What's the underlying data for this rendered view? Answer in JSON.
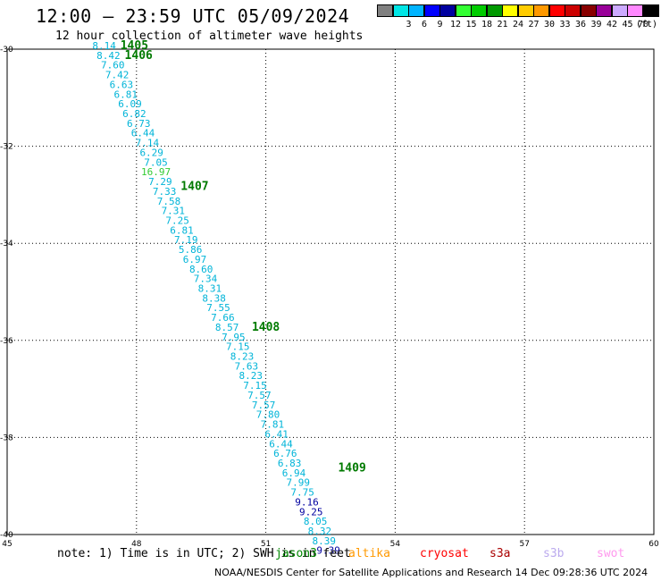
{
  "header": {
    "title": "12:00 – 23:59 UTC 05/09/2024",
    "subtitle": "12 hour collection of altimeter wave heights"
  },
  "color_scale": {
    "unit": "(ft)",
    "entries": [
      {
        "label": "",
        "color": "#808080"
      },
      {
        "label": "3",
        "color": "#00e5e5"
      },
      {
        "label": "6",
        "color": "#00b4ff"
      },
      {
        "label": "9",
        "color": "#0000ff"
      },
      {
        "label": "12",
        "color": "#0000a0"
      },
      {
        "label": "15",
        "color": "#33ff33"
      },
      {
        "label": "18",
        "color": "#00cc00"
      },
      {
        "label": "21",
        "color": "#009900"
      },
      {
        "label": "24",
        "color": "#ffff00"
      },
      {
        "label": "27",
        "color": "#ffcc00"
      },
      {
        "label": "30",
        "color": "#ff9900"
      },
      {
        "label": "33",
        "color": "#ff0000"
      },
      {
        "label": "36",
        "color": "#cc0000"
      },
      {
        "label": "39",
        "color": "#880000"
      },
      {
        "label": "42",
        "color": "#990099"
      },
      {
        "label": "45",
        "color": "#ccaaff"
      },
      {
        "label": "70",
        "color": "#ff88ff"
      },
      {
        "label": "",
        "color": "#000000"
      }
    ]
  },
  "map": {
    "lon_range": [
      45,
      60
    ],
    "lat_range": [
      -40,
      -30
    ],
    "lon_ticks": [
      45,
      48,
      51,
      54,
      57,
      60
    ],
    "lat_ticks": [
      -30,
      -32,
      -34,
      -36,
      -38,
      -40
    ],
    "grid": "dotted",
    "observations": [
      {
        "lon": 47.25,
        "lat": -30.0,
        "value": "8.14",
        "color": "#00b4d8"
      },
      {
        "lon": 47.35,
        "lat": -30.2,
        "value": "8.42",
        "color": "#00b4d8"
      },
      {
        "lon": 47.45,
        "lat": -30.4,
        "value": "7.60",
        "color": "#00b4d8"
      },
      {
        "lon": 47.55,
        "lat": -30.6,
        "value": "7.42",
        "color": "#00b4d8"
      },
      {
        "lon": 47.65,
        "lat": -30.8,
        "value": "6.63",
        "color": "#00b4d8"
      },
      {
        "lon": 47.75,
        "lat": -31.0,
        "value": "6.81",
        "color": "#00b4d8"
      },
      {
        "lon": 47.85,
        "lat": -31.2,
        "value": "6.09",
        "color": "#00b4d8"
      },
      {
        "lon": 47.95,
        "lat": -31.4,
        "value": "6.82",
        "color": "#00b4d8"
      },
      {
        "lon": 48.05,
        "lat": -31.6,
        "value": "6.73",
        "color": "#00b4d8"
      },
      {
        "lon": 48.15,
        "lat": -31.8,
        "value": "6.44",
        "color": "#00b4d8"
      },
      {
        "lon": 48.25,
        "lat": -32.0,
        "value": "7.14",
        "color": "#00b4d8"
      },
      {
        "lon": 48.35,
        "lat": -32.2,
        "value": "6.29",
        "color": "#00b4d8"
      },
      {
        "lon": 48.45,
        "lat": -32.4,
        "value": "7.05",
        "color": "#00b4d8"
      },
      {
        "lon": 48.45,
        "lat": -32.6,
        "value": "16.97",
        "color": "#33cc33"
      },
      {
        "lon": 48.55,
        "lat": -32.8,
        "value": "7.29",
        "color": "#00b4d8"
      },
      {
        "lon": 48.65,
        "lat": -33.0,
        "value": "7.33",
        "color": "#00b4d8"
      },
      {
        "lon": 48.75,
        "lat": -33.2,
        "value": "7.58",
        "color": "#00b4d8"
      },
      {
        "lon": 48.85,
        "lat": -33.4,
        "value": "7.31",
        "color": "#00b4d8"
      },
      {
        "lon": 48.95,
        "lat": -33.6,
        "value": "7.25",
        "color": "#00b4d8"
      },
      {
        "lon": 49.05,
        "lat": -33.8,
        "value": "6.81",
        "color": "#00b4d8"
      },
      {
        "lon": 49.15,
        "lat": -34.0,
        "value": "7.19",
        "color": "#00b4d8"
      },
      {
        "lon": 49.25,
        "lat": -34.2,
        "value": "5.86",
        "color": "#00b4d8"
      },
      {
        "lon": 49.35,
        "lat": -34.4,
        "value": "6.97",
        "color": "#00b4d8"
      },
      {
        "lon": 49.5,
        "lat": -34.6,
        "value": "8.60",
        "color": "#00b4d8"
      },
      {
        "lon": 49.6,
        "lat": -34.8,
        "value": "7.34",
        "color": "#00b4d8"
      },
      {
        "lon": 49.7,
        "lat": -35.0,
        "value": "8.31",
        "color": "#00b4d8"
      },
      {
        "lon": 49.8,
        "lat": -35.2,
        "value": "8.38",
        "color": "#00b4d8"
      },
      {
        "lon": 49.9,
        "lat": -35.4,
        "value": "7.55",
        "color": "#00b4d8"
      },
      {
        "lon": 50.0,
        "lat": -35.6,
        "value": "7.66",
        "color": "#00b4d8"
      },
      {
        "lon": 50.1,
        "lat": -35.8,
        "value": "8.57",
        "color": "#00b4d8"
      },
      {
        "lon": 50.25,
        "lat": -36.0,
        "value": "7.95",
        "color": "#00b4d8"
      },
      {
        "lon": 50.35,
        "lat": -36.2,
        "value": "7.15",
        "color": "#00b4d8"
      },
      {
        "lon": 50.45,
        "lat": -36.4,
        "value": "8.23",
        "color": "#00b4d8"
      },
      {
        "lon": 50.55,
        "lat": -36.6,
        "value": "7.63",
        "color": "#00b4d8"
      },
      {
        "lon": 50.65,
        "lat": -36.8,
        "value": "8.23",
        "color": "#00b4d8"
      },
      {
        "lon": 50.75,
        "lat": -37.0,
        "value": "7.15",
        "color": "#00b4d8"
      },
      {
        "lon": 50.85,
        "lat": -37.2,
        "value": "7.57",
        "color": "#00b4d8"
      },
      {
        "lon": 50.95,
        "lat": -37.4,
        "value": "7.57",
        "color": "#00b4d8"
      },
      {
        "lon": 51.05,
        "lat": -37.6,
        "value": "7.80",
        "color": "#00b4d8"
      },
      {
        "lon": 51.15,
        "lat": -37.8,
        "value": "7.81",
        "color": "#00b4d8"
      },
      {
        "lon": 51.25,
        "lat": -38.0,
        "value": "6.41",
        "color": "#00b4d8"
      },
      {
        "lon": 51.35,
        "lat": -38.2,
        "value": "6.44",
        "color": "#00b4d8"
      },
      {
        "lon": 51.45,
        "lat": -38.4,
        "value": "6.76",
        "color": "#00b4d8"
      },
      {
        "lon": 51.55,
        "lat": -38.6,
        "value": "6.83",
        "color": "#00b4d8"
      },
      {
        "lon": 51.65,
        "lat": -38.8,
        "value": "6.94",
        "color": "#00b4d8"
      },
      {
        "lon": 51.75,
        "lat": -39.0,
        "value": "7.99",
        "color": "#00b4d8"
      },
      {
        "lon": 51.85,
        "lat": -39.2,
        "value": "7.75",
        "color": "#00b4d8"
      },
      {
        "lon": 51.95,
        "lat": -39.4,
        "value": "9.16",
        "color": "#0000a0"
      },
      {
        "lon": 52.05,
        "lat": -39.6,
        "value": "9.25",
        "color": "#0000a0"
      },
      {
        "lon": 52.15,
        "lat": -39.8,
        "value": "8.05",
        "color": "#00b4d8"
      },
      {
        "lon": 52.25,
        "lat": -40.0,
        "value": "8.32",
        "color": "#00b4d8"
      },
      {
        "lon": 52.35,
        "lat": -40.2,
        "value": "8.39",
        "color": "#00b4d8"
      },
      {
        "lon": 52.45,
        "lat": -40.4,
        "value": "9.39",
        "color": "#0000a0"
      }
    ],
    "pass_times": [
      {
        "lon": 47.95,
        "lat": -30.0,
        "label": "1405"
      },
      {
        "lon": 48.05,
        "lat": -30.2,
        "label": "1406"
      },
      {
        "lon": 49.35,
        "lat": -32.9,
        "label": "1407"
      },
      {
        "lon": 51.0,
        "lat": -35.8,
        "label": "1408"
      },
      {
        "lon": 53.0,
        "lat": -38.7,
        "label": "1409"
      }
    ]
  },
  "footer": {
    "note": "note: 1) Time is in UTC; 2) SWH is in feet",
    "satellites": [
      {
        "name": "jason3",
        "color": "#008800"
      },
      {
        "name": "altika",
        "color": "#ff9900"
      },
      {
        "name": "cryosat",
        "color": "#ff0000"
      },
      {
        "name": "s3a",
        "color": "#aa0000"
      },
      {
        "name": "s3b",
        "color": "#bbaaee"
      },
      {
        "name": "swot",
        "color": "#ff99ee"
      }
    ],
    "credit": "NOAA/NESDIS Center for Satellite Applications and Research    14 Dec 09:28:36 UTC 2024"
  }
}
